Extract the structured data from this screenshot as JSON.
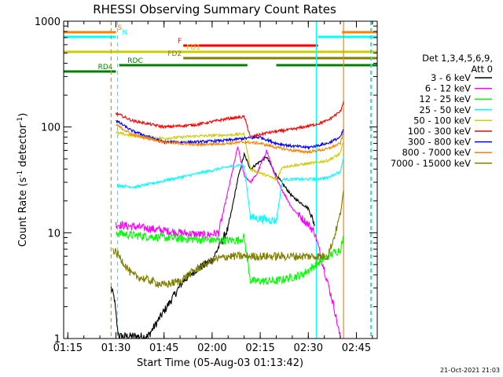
{
  "chart_data": {
    "type": "line",
    "title": "RHESSI Observing Summary Count Rates",
    "xlabel": "Start Time (05-Aug-03 01:13:42)",
    "ylabel": "Count Rate (s⁻¹ detector⁻¹)",
    "ylabel_parts": [
      "Count Rate (s",
      "-1",
      " detector",
      "-1",
      ")"
    ],
    "y_scale": "log",
    "ylim": [
      1,
      1000
    ],
    "xlim": [
      "01:13:42",
      "02:51:30"
    ],
    "x_ticks": [
      "01:15",
      "01:30",
      "01:45",
      "02:00",
      "02:15",
      "02:30",
      "02:45"
    ],
    "y_ticks": [
      "1",
      "10",
      "100",
      "1000"
    ],
    "legend": {
      "placement": "right",
      "title_lines": [
        "Det 1,3,4,5,6,9,",
        "Att 0"
      ],
      "entries": [
        {
          "label": "3 - 6 keV",
          "color": "#000000"
        },
        {
          "label": "6 - 12 keV",
          "color": "#ff00ff"
        },
        {
          "label": "12 - 25 keV",
          "color": "#00ff00"
        },
        {
          "label": "25 - 50 keV",
          "color": "#00ffff"
        },
        {
          "label": "50 - 100 keV",
          "color": "#cccc00"
        },
        {
          "label": "100 - 300 keV",
          "color": "#ff0000"
        },
        {
          "label": "300 - 800 keV",
          "color": "#0000ff"
        },
        {
          "label": "800 - 7000 keV",
          "color": "#ff8000"
        },
        {
          "label": "7000 - 15000 keV",
          "color": "#808000"
        }
      ]
    },
    "flags": [
      {
        "label": "S",
        "color": "#ff8000",
        "segments": [
          [
            "01:13:42",
            "01:30:00"
          ],
          [
            "02:40:30",
            "02:51:30"
          ]
        ]
      },
      {
        "label": "N",
        "color": "#00ffff",
        "segments": [
          [
            "01:13:42",
            "01:30:00"
          ],
          [
            "02:33:00",
            "02:51:30"
          ]
        ]
      },
      {
        "label": "F",
        "color": "#ff0000",
        "segments": [
          [
            "01:51:00",
            "02:33:00"
          ]
        ]
      },
      {
        "label": "FD1",
        "color": "#cccc00",
        "segments": [
          [
            "01:13:42",
            "02:51:30"
          ]
        ]
      },
      {
        "label": "FD2",
        "color": "#808000",
        "segments": [
          [
            "01:51:00",
            "02:51:30"
          ]
        ]
      },
      {
        "label": "RDC",
        "color": "#008000",
        "segments": [
          [
            "01:31:00",
            "02:11:00"
          ],
          [
            "02:20:00",
            "02:51:30"
          ]
        ]
      },
      {
        "label": "RD4",
        "color": "#008000",
        "segments": [
          [
            "01:13:42",
            "01:30:00"
          ]
        ]
      }
    ],
    "event_lines": [
      {
        "time": "01:28:30",
        "color": "#ff8000",
        "style": "dashed"
      },
      {
        "time": "01:30:30",
        "color": "#00ffff",
        "style": "dashed"
      },
      {
        "time": "02:32:30",
        "color": "#00ffff",
        "style": "solid"
      },
      {
        "time": "02:41:00",
        "color": "#ff8000",
        "style": "solid"
      },
      {
        "time": "02:49:30",
        "color": "#ff8000",
        "style": "dashed"
      },
      {
        "time": "02:49:45",
        "color": "#00ffff",
        "style": "dashed"
      }
    ],
    "series": [
      {
        "name": "3 - 6 keV",
        "color": "#000000",
        "x": [
          "01:28:30",
          "01:29:30",
          "01:30:30",
          "01:31:00",
          "01:40:00",
          "01:51:00",
          "01:55:00",
          "02:00:00",
          "02:05:00",
          "02:08:00",
          "02:10:00",
          "02:12:00",
          "02:14:00",
          "02:17:00",
          "02:20:00",
          "02:25:00",
          "02:30:00",
          "02:32:00"
        ],
        "y": [
          3,
          2.4,
          1.2,
          1.05,
          1.05,
          3.5,
          4.5,
          5.5,
          11,
          32,
          55,
          40,
          45,
          52,
          35,
          22,
          17,
          12
        ]
      },
      {
        "name": "6 - 12 keV",
        "color": "#ff00ff",
        "x": [
          "01:30:00",
          "01:40:00",
          "01:50:00",
          "01:58:00",
          "02:02:00",
          "02:05:00",
          "02:08:00",
          "02:10:00",
          "02:12:00",
          "02:14:00",
          "02:17:00",
          "02:20:00",
          "02:25:00",
          "02:30:00",
          "02:32:00",
          "02:38:00",
          "02:40:00"
        ],
        "y": [
          12,
          11,
          10,
          9.5,
          10,
          25,
          65,
          35,
          30,
          36,
          60,
          32,
          17,
          12,
          10,
          2,
          1
        ]
      },
      {
        "name": "12 - 25 keV",
        "color": "#00ff00",
        "x": [
          "01:30:00",
          "01:35:00",
          "01:45:00",
          "02:00:00",
          "02:08:00",
          "02:10:00",
          "02:12:00",
          "02:20:00",
          "02:28:00",
          "02:36:00",
          "02:40:00",
          "02:41:00"
        ],
        "y": [
          10,
          9.5,
          9,
          8.5,
          8.5,
          9,
          3.5,
          3.5,
          4,
          6,
          7,
          9
        ]
      },
      {
        "name": "25 - 50 keV",
        "color": "#00ffff",
        "x": [
          "01:30:30",
          "01:36:00",
          "01:45:00",
          "01:55:00",
          "02:05:00",
          "02:09:00",
          "02:10:00",
          "02:12:00",
          "02:20:00",
          "02:22:00",
          "02:30:00",
          "02:36:00",
          "02:40:00",
          "02:41:00"
        ],
        "y": [
          28,
          27,
          31,
          36,
          42,
          44,
          42,
          14,
          13,
          32,
          32,
          33,
          38,
          52
        ]
      },
      {
        "name": "50 - 100 keV",
        "color": "#cccc00",
        "x": [
          "01:30:00",
          "01:36:00",
          "01:45:00",
          "01:55:00",
          "02:05:00",
          "02:10:00",
          "02:12:00",
          "02:20:00",
          "02:22:00",
          "02:30:00",
          "02:36:00",
          "02:40:00",
          "02:41:00"
        ],
        "y": [
          88,
          82,
          78,
          82,
          84,
          86,
          40,
          32,
          42,
          45,
          48,
          56,
          75
        ]
      },
      {
        "name": "100 - 300 keV",
        "color": "#ff0000",
        "x": [
          "01:30:00",
          "01:35:00",
          "01:45:00",
          "01:55:00",
          "02:05:00",
          "02:10:00",
          "02:12:00",
          "02:17:00",
          "02:25:00",
          "02:32:00",
          "02:36:00",
          "02:40:00",
          "02:41:00"
        ],
        "y": [
          135,
          115,
          100,
          105,
          120,
          125,
          80,
          88,
          95,
          105,
          115,
          140,
          175
        ]
      },
      {
        "name": "300 - 800 keV",
        "color": "#0000ff",
        "x": [
          "01:30:00",
          "01:35:00",
          "01:45:00",
          "01:55:00",
          "02:05:00",
          "02:10:00",
          "02:15:00",
          "02:20:00",
          "02:25:00",
          "02:30:00",
          "02:36:00",
          "02:40:00",
          "02:41:00"
        ],
        "y": [
          115,
          92,
          72,
          72,
          75,
          78,
          80,
          70,
          66,
          64,
          70,
          80,
          95
        ]
      },
      {
        "name": "800 - 7000 keV",
        "color": "#ff8000",
        "x": [
          "01:30:00",
          "01:35:00",
          "01:45:00",
          "01:55:00",
          "02:05:00",
          "02:10:00",
          "02:15:00",
          "02:20:00",
          "02:25:00",
          "02:30:00",
          "02:36:00",
          "02:40:00",
          "02:41:00"
        ],
        "y": [
          105,
          85,
          72,
          68,
          70,
          72,
          70,
          64,
          60,
          58,
          62,
          70,
          90
        ]
      },
      {
        "name": "7000 - 15000 keV",
        "color": "#808000",
        "x": [
          "01:29:00",
          "01:31:00",
          "01:35:00",
          "01:45:00",
          "01:50:00",
          "01:55:00",
          "02:00:00",
          "02:05:00",
          "02:10:00",
          "02:20:00",
          "02:30:00",
          "02:36:00",
          "02:38:00",
          "02:40:00",
          "02:41:00"
        ],
        "y": [
          7,
          6,
          4,
          3.2,
          3.5,
          4.5,
          5.5,
          6,
          6,
          6,
          6,
          6,
          9,
          15,
          25
        ]
      }
    ]
  },
  "footer": {
    "date_stamp": "21-Oct-2021 21:03"
  }
}
